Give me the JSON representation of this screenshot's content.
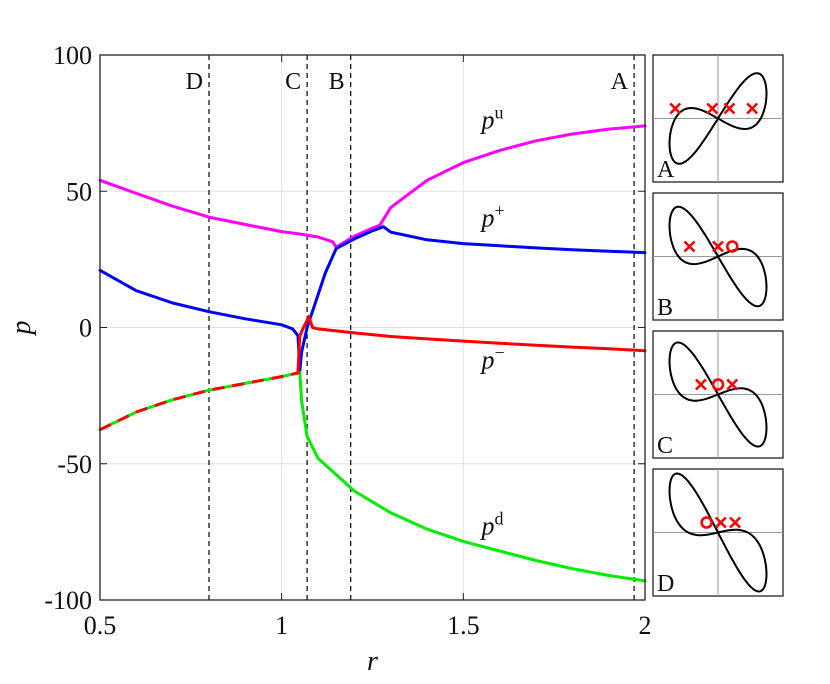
{
  "chart_data": {
    "type": "line",
    "xlabel": "r",
    "ylabel": "p",
    "xlim": [
      0.5,
      2
    ],
    "ylim": [
      -100,
      100
    ],
    "xticks": [
      0.5,
      1,
      1.5,
      2
    ],
    "xtick_labels": [
      "0.5",
      "1",
      "1.5",
      "2"
    ],
    "yticks": [
      -100,
      -50,
      0,
      50,
      100
    ],
    "ytick_labels": [
      "-100",
      "-50",
      "0",
      "50",
      "100"
    ],
    "grid": true,
    "colors": {
      "pu": "#ff00ff",
      "pplus": "#0000ff",
      "pminus": "#ff0000",
      "pd": "#00ee00",
      "markers": "#ff0000",
      "reference": "#000000"
    },
    "reference_lines": [
      {
        "label": "D",
        "x": 0.8
      },
      {
        "label": "C",
        "x": 1.07
      },
      {
        "label": "B",
        "x": 1.19
      },
      {
        "label": "A",
        "x": 1.97
      }
    ],
    "series": [
      {
        "name": "p^u",
        "color": "#ff00ff",
        "points": [
          [
            0.5,
            54
          ],
          [
            0.6,
            49.2
          ],
          [
            0.7,
            44.5
          ],
          [
            0.8,
            40.5
          ],
          [
            0.9,
            37.8
          ],
          [
            1.0,
            35.2
          ],
          [
            1.05,
            34.3
          ],
          [
            1.1,
            33.2
          ],
          [
            1.14,
            31.5
          ],
          [
            1.15,
            29.5
          ],
          [
            1.2,
            33.5
          ],
          [
            1.25,
            36.5
          ],
          [
            1.27,
            37.5
          ],
          [
            1.3,
            44
          ],
          [
            1.4,
            54
          ],
          [
            1.5,
            60.5
          ],
          [
            1.6,
            65
          ],
          [
            1.7,
            68.5
          ],
          [
            1.8,
            71
          ],
          [
            1.9,
            72.8
          ],
          [
            2.0,
            74
          ]
        ]
      },
      {
        "name": "p^+",
        "color": "#0000ff",
        "points": [
          [
            0.5,
            21
          ],
          [
            0.6,
            13.5
          ],
          [
            0.7,
            9
          ],
          [
            0.8,
            5.8
          ],
          [
            0.9,
            3.2
          ],
          [
            1.0,
            1
          ],
          [
            1.03,
            -0.5
          ],
          [
            1.045,
            -3
          ],
          [
            1.05,
            -16
          ],
          [
            1.055,
            -9
          ],
          [
            1.07,
            0
          ],
          [
            1.09,
            8
          ],
          [
            1.12,
            20
          ],
          [
            1.15,
            29
          ],
          [
            1.2,
            32.5
          ],
          [
            1.25,
            35.5
          ],
          [
            1.28,
            37
          ],
          [
            1.3,
            35
          ],
          [
            1.4,
            32.2
          ],
          [
            1.5,
            30.8
          ],
          [
            1.6,
            30
          ],
          [
            1.7,
            29.2
          ],
          [
            1.8,
            28.5
          ],
          [
            1.9,
            28
          ],
          [
            2.0,
            27.5
          ]
        ]
      },
      {
        "name": "p^-",
        "color": "#ff0000",
        "points": [
          [
            1.045,
            -16
          ],
          [
            1.05,
            -3
          ],
          [
            1.06,
            0
          ],
          [
            1.075,
            4
          ],
          [
            1.085,
            0
          ],
          [
            1.1,
            -0.5
          ],
          [
            1.2,
            -2
          ],
          [
            1.3,
            -3.3
          ],
          [
            1.4,
            -4.2
          ],
          [
            1.5,
            -5
          ],
          [
            1.6,
            -5.8
          ],
          [
            1.7,
            -6.5
          ],
          [
            1.8,
            -7.2
          ],
          [
            1.9,
            -7.8
          ],
          [
            2.0,
            -8.5
          ]
        ]
      },
      {
        "name": "p^d",
        "color": "#00ee00",
        "points": [
          [
            0.5,
            -37.5
          ],
          [
            0.6,
            -31
          ],
          [
            0.7,
            -26.5
          ],
          [
            0.8,
            -23
          ],
          [
            0.9,
            -20.5
          ],
          [
            1.0,
            -18
          ],
          [
            1.05,
            -16.5
          ],
          [
            1.055,
            -27
          ],
          [
            1.07,
            -40
          ],
          [
            1.1,
            -48
          ],
          [
            1.2,
            -60
          ],
          [
            1.3,
            -68
          ],
          [
            1.4,
            -74
          ],
          [
            1.5,
            -78.5
          ],
          [
            1.6,
            -82
          ],
          [
            1.7,
            -85.5
          ],
          [
            1.8,
            -88.5
          ],
          [
            1.9,
            -91
          ],
          [
            2.0,
            -93
          ]
        ]
      }
    ],
    "overlay": {
      "name": "p^d dashed red",
      "color": "#ff0000",
      "points": [
        [
          0.5,
          -37.5
        ],
        [
          0.6,
          -31
        ],
        [
          0.7,
          -26.5
        ],
        [
          0.8,
          -23
        ],
        [
          0.9,
          -20.5
        ],
        [
          1.0,
          -18
        ],
        [
          1.05,
          -16.5
        ]
      ]
    },
    "curve_labels": [
      {
        "label": "p",
        "sup": "u",
        "x": 1.55,
        "y": 73
      },
      {
        "label": "p",
        "sup": "+",
        "x": 1.55,
        "y": 37
      },
      {
        "label": "p",
        "sup": "−",
        "x": 1.55,
        "y": -15
      },
      {
        "label": "p",
        "sup": "d",
        "x": 1.55,
        "y": -76
      }
    ],
    "insets": [
      {
        "label": "A",
        "markers": [
          {
            "shape": "x",
            "u": -0.75,
            "v": 0
          },
          {
            "shape": "x",
            "u": -0.1,
            "v": 0
          },
          {
            "shape": "x",
            "u": 0.2,
            "v": 0
          },
          {
            "shape": "x",
            "u": 0.6,
            "v": 0
          }
        ]
      },
      {
        "label": "B",
        "markers": [
          {
            "shape": "x",
            "u": -0.5,
            "v": 0
          },
          {
            "shape": "x",
            "u": 0.0,
            "v": 0
          },
          {
            "shape": "o",
            "u": 0.25,
            "v": 0
          }
        ]
      },
      {
        "label": "C",
        "markers": [
          {
            "shape": "x",
            "u": -0.3,
            "v": 0
          },
          {
            "shape": "o",
            "u": 0.0,
            "v": 0
          },
          {
            "shape": "x",
            "u": 0.25,
            "v": 0
          }
        ]
      },
      {
        "label": "D",
        "markers": [
          {
            "shape": "o",
            "u": -0.2,
            "v": 0
          },
          {
            "shape": "x",
            "u": 0.05,
            "v": 0
          },
          {
            "shape": "x",
            "u": 0.3,
            "v": 0
          }
        ]
      }
    ]
  }
}
